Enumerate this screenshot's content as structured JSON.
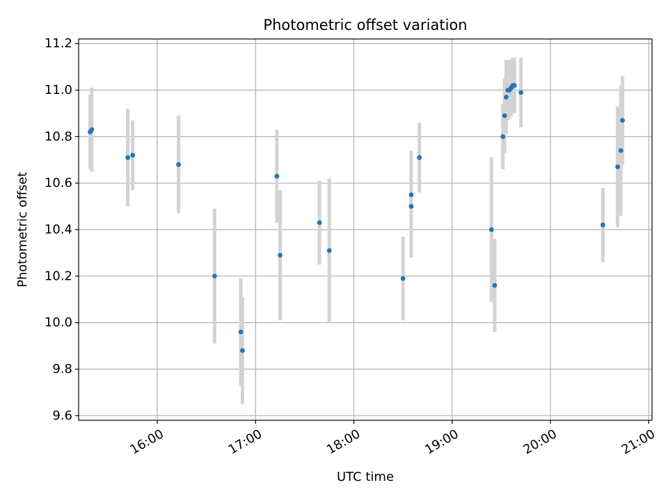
{
  "chart_data": {
    "type": "scatter",
    "title": "Photometric offset variation",
    "xlabel": "UTC time",
    "ylabel": "Photometric offset",
    "xlim": [
      "15:12",
      "21:02"
    ],
    "ylim": [
      9.58,
      11.22
    ],
    "xticks": [
      "16:00",
      "17:00",
      "18:00",
      "19:00",
      "20:00",
      "21:00"
    ],
    "yticks": [
      9.6,
      9.8,
      10.0,
      10.2,
      10.4,
      10.6,
      10.8,
      11.0,
      11.2
    ],
    "ytick_labels": [
      "9.6",
      "9.8",
      "10.0",
      "10.2",
      "10.4",
      "10.6",
      "10.8",
      "11.0",
      "11.2"
    ],
    "grid": true,
    "points": [
      {
        "x": "15:19",
        "y": 10.82,
        "err": 0.16
      },
      {
        "x": "15:20",
        "y": 10.83,
        "err": 0.18
      },
      {
        "x": "15:42",
        "y": 10.71,
        "err": 0.21
      },
      {
        "x": "15:45",
        "y": 10.72,
        "err": 0.15
      },
      {
        "x": "16:13",
        "y": 10.68,
        "err": 0.21
      },
      {
        "x": "16:35",
        "y": 10.2,
        "err": 0.29
      },
      {
        "x": "16:51",
        "y": 9.96,
        "err": 0.23
      },
      {
        "x": "16:52",
        "y": 9.88,
        "err": 0.23
      },
      {
        "x": "17:13",
        "y": 10.63,
        "err": 0.2
      },
      {
        "x": "17:15",
        "y": 10.29,
        "err": 0.28
      },
      {
        "x": "17:39",
        "y": 10.43,
        "err": 0.18
      },
      {
        "x": "17:45",
        "y": 10.31,
        "err": 0.31
      },
      {
        "x": "18:30",
        "y": 10.19,
        "err": 0.18
      },
      {
        "x": "18:35",
        "y": 10.5,
        "err": 0.22
      },
      {
        "x": "18:35",
        "y": 10.55,
        "err": 0.19
      },
      {
        "x": "18:40",
        "y": 10.71,
        "err": 0.15
      },
      {
        "x": "19:24",
        "y": 10.4,
        "err": 0.31
      },
      {
        "x": "19:26",
        "y": 10.16,
        "err": 0.2
      },
      {
        "x": "19:31",
        "y": 10.8,
        "err": 0.14
      },
      {
        "x": "19:32",
        "y": 10.89,
        "err": 0.16
      },
      {
        "x": "19:33",
        "y": 10.97,
        "err": 0.16
      },
      {
        "x": "19:34",
        "y": 11.0,
        "err": 0.13
      },
      {
        "x": "19:35",
        "y": 11.0,
        "err": 0.12
      },
      {
        "x": "19:36",
        "y": 11.01,
        "err": 0.12
      },
      {
        "x": "19:37",
        "y": 11.02,
        "err": 0.12
      },
      {
        "x": "19:38",
        "y": 11.02,
        "err": 0.12
      },
      {
        "x": "19:42",
        "y": 10.99,
        "err": 0.15
      },
      {
        "x": "20:32",
        "y": 10.42,
        "err": 0.16
      },
      {
        "x": "20:41",
        "y": 10.67,
        "err": 0.26
      },
      {
        "x": "20:43",
        "y": 10.74,
        "err": 0.28
      },
      {
        "x": "20:44",
        "y": 10.87,
        "err": 0.19
      }
    ],
    "colors": {
      "marker": "#1f77b4",
      "errorbar": "#d3d3d3",
      "grid": "#b0b0b0",
      "axis": "#000000"
    }
  }
}
